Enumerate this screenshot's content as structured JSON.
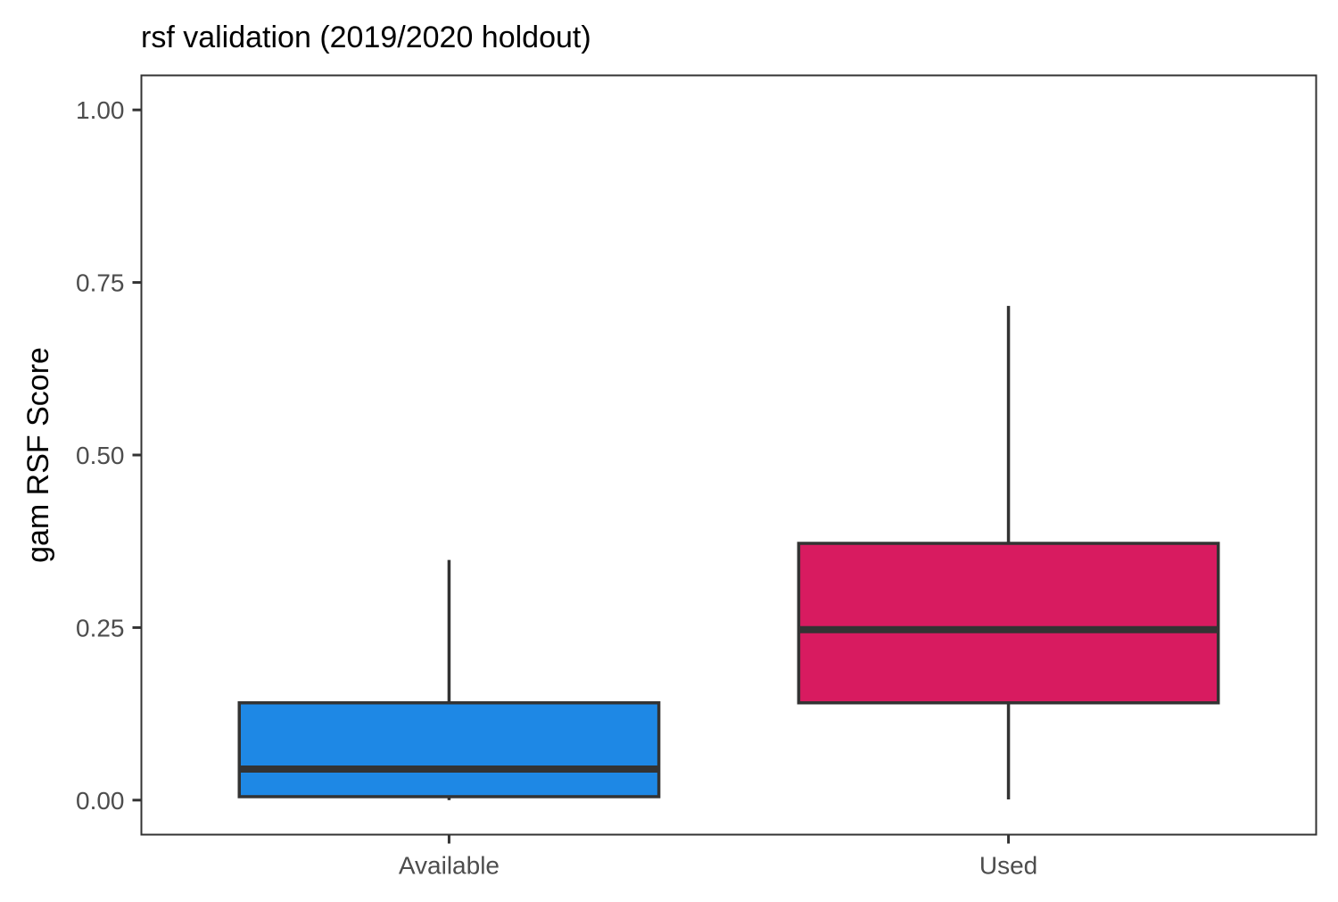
{
  "chart_data": {
    "type": "boxplot",
    "title": "rsf validation (2019/2020 holdout)",
    "xlabel": "",
    "ylabel": "gam RSF Score",
    "ylim": [
      -0.05,
      1.05
    ],
    "yticks": [
      0.0,
      0.25,
      0.5,
      0.75,
      1.0
    ],
    "ytick_labels": [
      "0.00",
      "0.25",
      "0.50",
      "0.75",
      "1.00"
    ],
    "categories": [
      "Available",
      "Used"
    ],
    "boxes": [
      {
        "category": "Available",
        "min": 0.0,
        "q1": 0.005,
        "median": 0.045,
        "q3": 0.141,
        "max": 0.348,
        "color": "#1E88E5"
      },
      {
        "category": "Used",
        "min": 0.001,
        "q1": 0.141,
        "median": 0.247,
        "q3": 0.372,
        "max": 0.716,
        "color": "#D81B60"
      }
    ],
    "grid": false,
    "legend": "none",
    "colors": {
      "outline": "#333333",
      "panel_border": "#333333",
      "tick_label": "#4d4d4d",
      "background": "#ffffff"
    }
  }
}
